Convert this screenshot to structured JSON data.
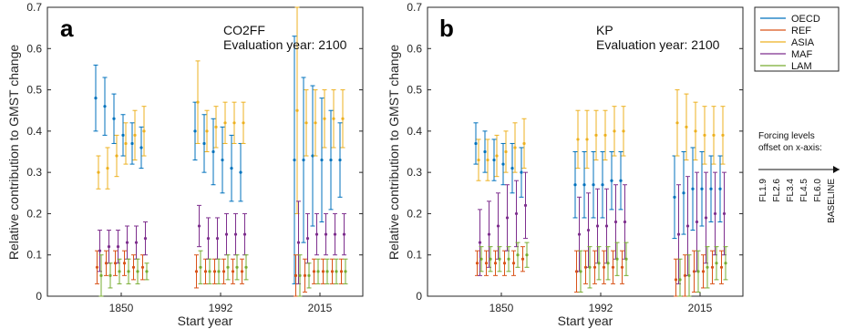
{
  "chart_data": {
    "type": "scatter",
    "legend": {
      "placement": "outside-right",
      "entries": [
        {
          "name": "OECD",
          "color": "#0072BD"
        },
        {
          "name": "REF",
          "color": "#D95319"
        },
        {
          "name": "ASIA",
          "color": "#EDB120"
        },
        {
          "name": "MAF",
          "color": "#7E2F8E"
        },
        {
          "name": "LAM",
          "color": "#77AC30"
        }
      ]
    },
    "side_note": {
      "title_lines": [
        "Forcing levels",
        "offset on x-axis:"
      ],
      "levels": [
        "FL1.9",
        "FL2.6",
        "FL3.4",
        "FL4.5",
        "FL6.0",
        "BASELINE"
      ]
    },
    "panels": [
      {
        "label": "a",
        "annotation": [
          "CO2FF",
          "Evaluation year: 2100"
        ],
        "xlabel": "Start year",
        "ylabel": "Relative contribution to GMST change",
        "ylim": [
          0,
          0.7
        ],
        "yticks": [
          "0",
          "0.1",
          "0.2",
          "0.3",
          "0.4",
          "0.5",
          "0.6",
          "0.7"
        ],
        "groups": [
          "1850",
          "1992",
          "2015"
        ],
        "series": [
          {
            "name": "OECD",
            "values": [
              [
                0.48,
                0.46,
                0.43,
                0.39,
                0.37,
                0.36
              ],
              [
                0.4,
                0.37,
                0.35,
                0.33,
                0.31,
                0.3
              ],
              [
                0.33,
                0.33,
                0.34,
                0.33,
                0.33,
                0.33
              ]
            ],
            "err": [
              [
                0.08,
                0.07,
                0.06,
                0.05,
                0.05,
                0.05
              ],
              [
                0.07,
                0.07,
                0.08,
                0.08,
                0.08,
                0.07
              ],
              [
                0.3,
                0.2,
                0.17,
                0.15,
                0.12,
                0.09
              ]
            ]
          },
          {
            "name": "REF",
            "values": [
              [
                0.07,
                0.08,
                0.08,
                0.08,
                0.07,
                0.07
              ],
              [
                0.06,
                0.06,
                0.06,
                0.06,
                0.06,
                0.06
              ],
              [
                0.05,
                0.05,
                0.06,
                0.06,
                0.06,
                0.06
              ]
            ],
            "err": [
              [
                0.04,
                0.03,
                0.03,
                0.03,
                0.03,
                0.03
              ],
              [
                0.04,
                0.03,
                0.03,
                0.03,
                0.03,
                0.03
              ],
              [
                0.05,
                0.04,
                0.03,
                0.03,
                0.03,
                0.03
              ]
            ]
          },
          {
            "name": "ASIA",
            "values": [
              [
                0.3,
                0.31,
                0.34,
                0.37,
                0.39,
                0.4
              ],
              [
                0.47,
                0.4,
                0.41,
                0.42,
                0.42,
                0.42
              ],
              [
                0.45,
                0.42,
                0.42,
                0.43,
                0.43,
                0.43
              ]
            ],
            "err": [
              [
                0.04,
                0.05,
                0.05,
                0.05,
                0.06,
                0.06
              ],
              [
                0.1,
                0.05,
                0.05,
                0.05,
                0.05,
                0.05
              ],
              [
                0.25,
                0.08,
                0.08,
                0.07,
                0.07,
                0.07
              ]
            ]
          },
          {
            "name": "MAF",
            "values": [
              [
                0.11,
                0.12,
                0.12,
                0.13,
                0.13,
                0.14
              ],
              [
                0.17,
                0.14,
                0.14,
                0.15,
                0.15,
                0.15
              ],
              [
                0.13,
                0.14,
                0.15,
                0.15,
                0.15,
                0.15
              ]
            ],
            "err": [
              [
                0.05,
                0.04,
                0.04,
                0.04,
                0.04,
                0.04
              ],
              [
                0.05,
                0.05,
                0.05,
                0.05,
                0.05,
                0.05
              ],
              [
                0.1,
                0.06,
                0.05,
                0.05,
                0.05,
                0.05
              ]
            ]
          },
          {
            "name": "LAM",
            "values": [
              [
                0.05,
                0.05,
                0.06,
                0.06,
                0.06,
                0.06
              ],
              [
                0.07,
                0.06,
                0.06,
                0.07,
                0.07,
                0.07
              ],
              [
                0.05,
                0.05,
                0.06,
                0.06,
                0.06,
                0.06
              ]
            ],
            "err": [
              [
                0.05,
                0.03,
                0.03,
                0.03,
                0.03,
                0.02
              ],
              [
                0.04,
                0.03,
                0.03,
                0.03,
                0.03,
                0.03
              ],
              [
                0.05,
                0.03,
                0.03,
                0.03,
                0.03,
                0.03
              ]
            ]
          }
        ]
      },
      {
        "label": "b",
        "annotation": [
          "KP",
          "Evaluation year: 2100"
        ],
        "xlabel": "Start year",
        "ylabel": "Relative contribution to GMST change",
        "ylim": [
          0,
          0.7
        ],
        "yticks": [
          "0",
          "0.1",
          "0.2",
          "0.3",
          "0.4",
          "0.5",
          "0.6",
          "0.7"
        ],
        "groups": [
          "1850",
          "1992",
          "2015"
        ],
        "series": [
          {
            "name": "OECD",
            "values": [
              [
                0.37,
                0.35,
                0.33,
                0.32,
                0.31,
                0.3
              ],
              [
                0.27,
                0.27,
                0.27,
                0.27,
                0.28,
                0.28
              ],
              [
                0.24,
                0.25,
                0.26,
                0.26,
                0.26,
                0.26
              ]
            ],
            "err": [
              [
                0.05,
                0.05,
                0.05,
                0.05,
                0.06,
                0.06
              ],
              [
                0.08,
                0.08,
                0.08,
                0.08,
                0.07,
                0.07
              ],
              [
                0.1,
                0.1,
                0.1,
                0.09,
                0.08,
                0.08
              ]
            ]
          },
          {
            "name": "REF",
            "values": [
              [
                0.08,
                0.08,
                0.08,
                0.08,
                0.08,
                0.09
              ],
              [
                0.06,
                0.07,
                0.07,
                0.07,
                0.07,
                0.07
              ],
              [
                0.04,
                0.05,
                0.06,
                0.06,
                0.07,
                0.07
              ]
            ],
            "err": [
              [
                0.03,
                0.03,
                0.03,
                0.03,
                0.03,
                0.03
              ],
              [
                0.05,
                0.04,
                0.04,
                0.04,
                0.04,
                0.04
              ],
              [
                0.05,
                0.05,
                0.05,
                0.04,
                0.04,
                0.04
              ]
            ]
          },
          {
            "name": "ASIA",
            "values": [
              [
                0.33,
                0.33,
                0.34,
                0.35,
                0.36,
                0.37
              ],
              [
                0.38,
                0.38,
                0.39,
                0.39,
                0.4,
                0.4
              ],
              [
                0.42,
                0.41,
                0.4,
                0.39,
                0.39,
                0.39
              ]
            ],
            "err": [
              [
                0.05,
                0.05,
                0.05,
                0.05,
                0.06,
                0.06
              ],
              [
                0.07,
                0.07,
                0.06,
                0.06,
                0.06,
                0.06
              ],
              [
                0.08,
                0.08,
                0.07,
                0.07,
                0.07,
                0.07
              ]
            ]
          },
          {
            "name": "MAF",
            "values": [
              [
                0.13,
                0.15,
                0.17,
                0.19,
                0.2,
                0.22
              ],
              [
                0.15,
                0.16,
                0.17,
                0.17,
                0.18,
                0.18
              ],
              [
                0.15,
                0.17,
                0.18,
                0.19,
                0.2,
                0.2
              ]
            ],
            "err": [
              [
                0.08,
                0.08,
                0.08,
                0.08,
                0.08,
                0.08
              ],
              [
                0.09,
                0.09,
                0.09,
                0.09,
                0.09,
                0.09
              ],
              [
                0.12,
                0.12,
                0.12,
                0.11,
                0.1,
                0.1
              ]
            ]
          },
          {
            "name": "LAM",
            "values": [
              [
                0.09,
                0.09,
                0.09,
                0.09,
                0.1,
                0.1
              ],
              [
                0.06,
                0.07,
                0.08,
                0.08,
                0.09,
                0.09
              ],
              [
                0.04,
                0.05,
                0.06,
                0.07,
                0.08,
                0.08
              ]
            ],
            "err": [
              [
                0.03,
                0.03,
                0.03,
                0.03,
                0.03,
                0.03
              ],
              [
                0.05,
                0.05,
                0.04,
                0.04,
                0.04,
                0.04
              ],
              [
                0.05,
                0.05,
                0.05,
                0.05,
                0.04,
                0.04
              ]
            ]
          }
        ]
      }
    ]
  }
}
